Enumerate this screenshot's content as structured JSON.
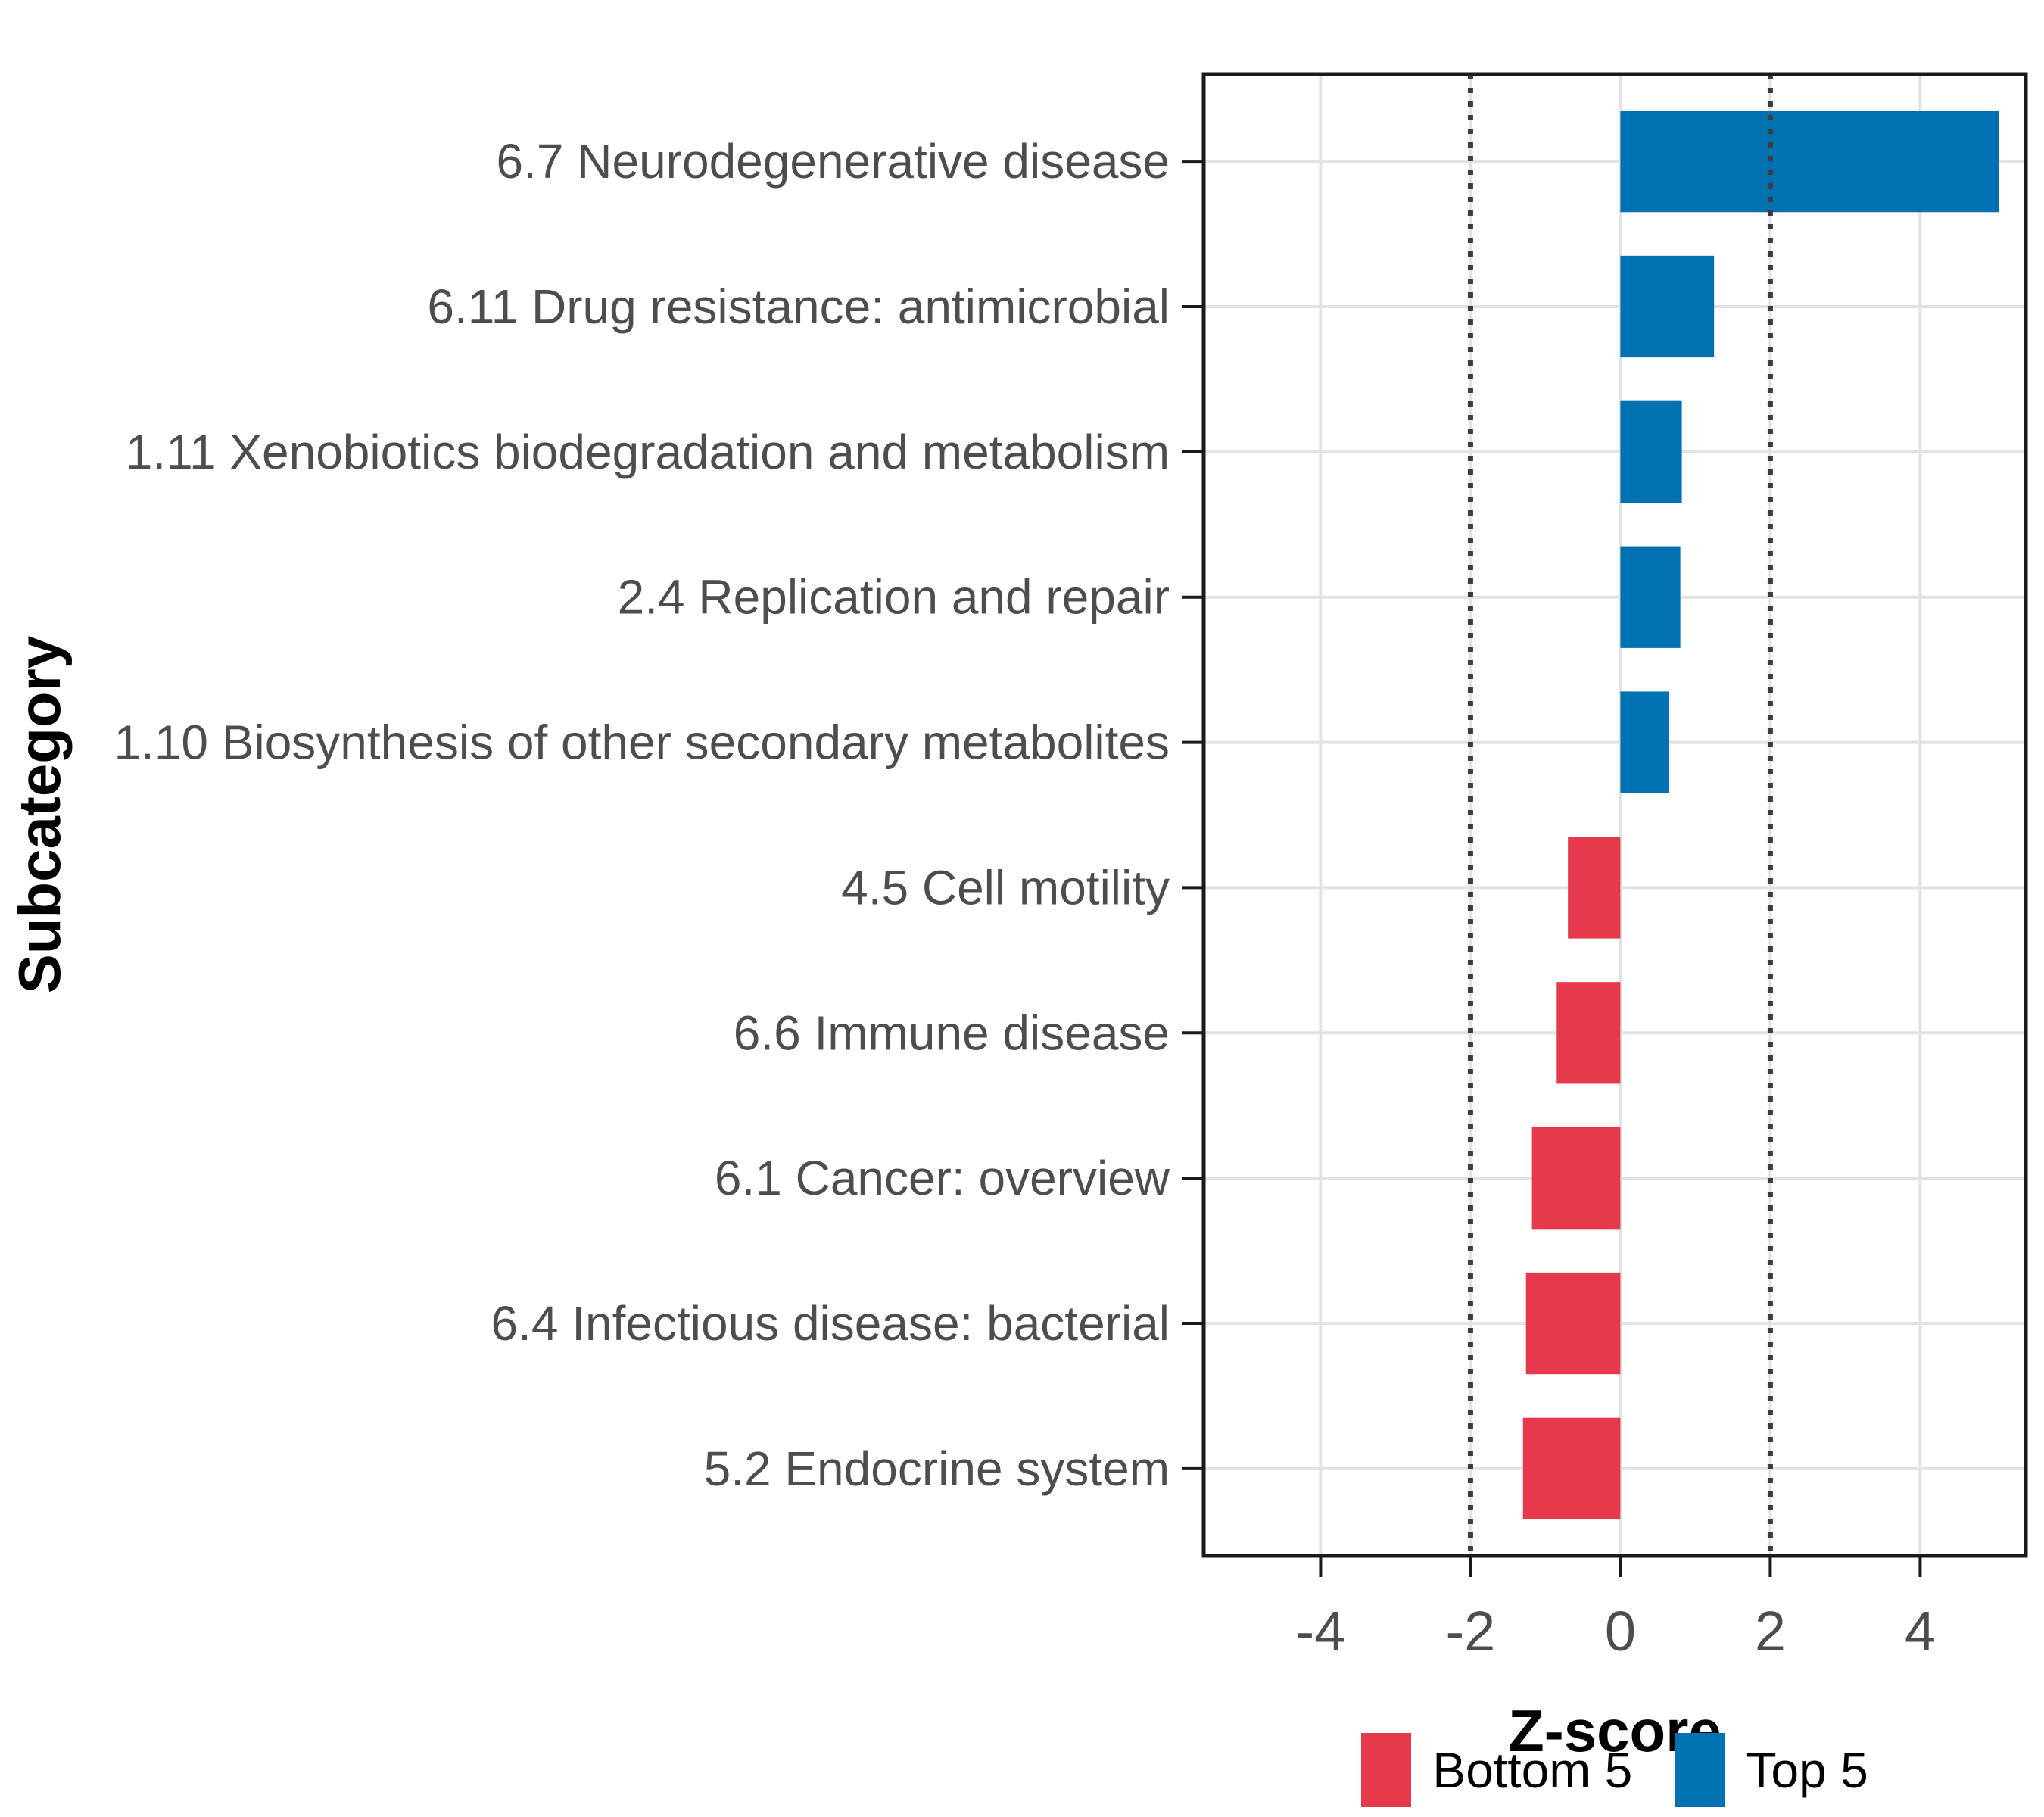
{
  "chart_data": {
    "type": "bar",
    "orientation": "horizontal",
    "title": "",
    "xlabel": "Z-score",
    "ylabel": "Subcategory",
    "xlim": [
      -5.56,
      5.41
    ],
    "xticks": [
      -4,
      -2,
      0,
      2,
      4
    ],
    "grid": "major",
    "legend_position": "bottom",
    "reference_lines": {
      "values": [
        -2,
        2
      ],
      "style": "dotted"
    },
    "categories": [
      "6.7 Neurodegenerative disease",
      "6.11 Drug resistance: antimicrobial",
      "1.11 Xenobiotics biodegradation and metabolism",
      "2.4 Replication and repair",
      "1.10 Biosynthesis of other secondary metabolites",
      "4.5 Cell motility",
      "6.6 Immune disease",
      "6.1 Cancer: overview",
      "6.4 Infectious disease: bacterial",
      "5.2 Endocrine system"
    ],
    "items": [
      {
        "label": "6.7 Neurodegenerative disease",
        "value": 5.05,
        "group": "Top 5"
      },
      {
        "label": "6.11 Drug resistance: antimicrobial",
        "value": 1.25,
        "group": "Top 5"
      },
      {
        "label": "1.11 Xenobiotics biodegradation and metabolism",
        "value": 0.82,
        "group": "Top 5"
      },
      {
        "label": "2.4 Replication and repair",
        "value": 0.8,
        "group": "Top 5"
      },
      {
        "label": "1.10 Biosynthesis of other secondary metabolites",
        "value": 0.65,
        "group": "Top 5"
      },
      {
        "label": "4.5 Cell motility",
        "value": -0.7,
        "group": "Bottom 5"
      },
      {
        "label": "6.6 Immune disease",
        "value": -0.85,
        "group": "Bottom 5"
      },
      {
        "label": "6.1 Cancer: overview",
        "value": -1.18,
        "group": "Bottom 5"
      },
      {
        "label": "6.4 Infectious disease: bacterial",
        "value": -1.26,
        "group": "Bottom 5"
      },
      {
        "label": "5.2 Endocrine system",
        "value": -1.3,
        "group": "Bottom 5"
      }
    ],
    "groups": [
      {
        "name": "Bottom 5",
        "color": "#e6394b"
      },
      {
        "name": "Top 5",
        "color": "#0072b2"
      }
    ]
  }
}
